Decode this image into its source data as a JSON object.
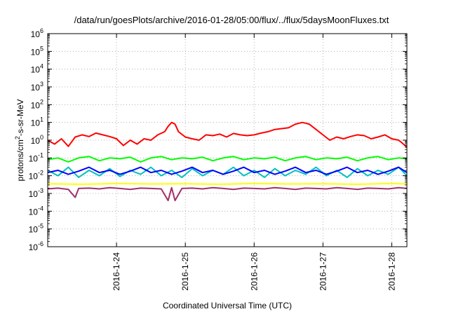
{
  "chart_data": {
    "type": "line",
    "title": "/data/run/goesPlots/archive/2016-01-28/05:00/flux/../flux/5daysMoonFluxes.txt",
    "xlabel": "Coordinated Universal Time (UTC)",
    "ylabel": "protons/cm2-s-sr-MeV",
    "ylabel_parts": {
      "pre": "protons/cm",
      "sup": "2",
      "post": "-s-sr-MeV"
    },
    "yscale": "log",
    "ylim_exp": [
      -6,
      6
    ],
    "y_tick_labels": [
      {
        "base": "10",
        "exp": "-6"
      },
      {
        "base": "10",
        "exp": "-5"
      },
      {
        "base": "10",
        "exp": "-4"
      },
      {
        "base": "10",
        "exp": "-3"
      },
      {
        "base": "10",
        "exp": "-2"
      },
      {
        "base": "10",
        "exp": "-1"
      },
      {
        "base": "10",
        "exp": "0"
      },
      {
        "base": "10",
        "exp": "1"
      },
      {
        "base": "10",
        "exp": "2"
      },
      {
        "base": "10",
        "exp": "3"
      },
      {
        "base": "10",
        "exp": "4"
      },
      {
        "base": "10",
        "exp": "5"
      },
      {
        "base": "10",
        "exp": "6"
      }
    ],
    "xlim_days": [
      23.0,
      28.22
    ],
    "x_ticks": [
      {
        "label": "2016-1-24",
        "day": 24
      },
      {
        "label": "2016-1-25",
        "day": 25
      },
      {
        "label": "2016-1-26",
        "day": 26
      },
      {
        "label": "2016-1-27",
        "day": 27
      },
      {
        "label": "2016-1-28",
        "day": 28
      }
    ],
    "grid": true,
    "series": [
      {
        "color": "#ff0000",
        "x": [
          23.0,
          23.1,
          23.2,
          23.3,
          23.4,
          23.5,
          23.6,
          23.7,
          23.8,
          23.9,
          24.0,
          24.1,
          24.2,
          24.3,
          24.4,
          24.5,
          24.6,
          24.7,
          24.75,
          24.8,
          24.85,
          24.9,
          25.0,
          25.1,
          25.2,
          25.3,
          25.4,
          25.5,
          25.6,
          25.7,
          25.8,
          25.9,
          26.0,
          26.1,
          26.2,
          26.3,
          26.4,
          26.5,
          26.6,
          26.7,
          26.75,
          26.8,
          26.9,
          27.0,
          27.1,
          27.2,
          27.3,
          27.4,
          27.5,
          27.6,
          27.7,
          27.8,
          27.9,
          28.0,
          28.1,
          28.15,
          28.22
        ],
        "y": [
          1.0,
          0.6,
          1.2,
          0.45,
          1.5,
          2.0,
          1.6,
          2.5,
          2.0,
          1.6,
          1.2,
          0.5,
          1.0,
          0.6,
          1.2,
          1.0,
          2.0,
          3.0,
          6.0,
          10.0,
          8.0,
          3.0,
          1.5,
          1.2,
          1.0,
          2.0,
          1.8,
          2.2,
          1.5,
          2.4,
          2.0,
          1.8,
          2.0,
          2.5,
          3.0,
          4.0,
          4.5,
          5.0,
          8.0,
          10.0,
          9.0,
          8.0,
          4.0,
          2.0,
          1.0,
          1.5,
          1.2,
          1.6,
          2.0,
          1.8,
          1.2,
          1.5,
          2.0,
          1.2,
          1.0,
          0.7,
          0.4
        ]
      },
      {
        "color": "#00ff00",
        "x": [
          23.0,
          23.15,
          23.3,
          23.45,
          23.6,
          23.75,
          23.9,
          24.05,
          24.2,
          24.35,
          24.5,
          24.65,
          24.8,
          24.95,
          25.1,
          25.25,
          25.4,
          25.55,
          25.7,
          25.85,
          26.0,
          26.15,
          26.3,
          26.45,
          26.6,
          26.75,
          26.9,
          27.05,
          27.2,
          27.35,
          27.5,
          27.65,
          27.8,
          27.95,
          28.1,
          28.22
        ],
        "y": [
          0.08,
          0.1,
          0.06,
          0.1,
          0.12,
          0.07,
          0.1,
          0.09,
          0.11,
          0.06,
          0.1,
          0.12,
          0.08,
          0.1,
          0.09,
          0.11,
          0.07,
          0.1,
          0.12,
          0.08,
          0.1,
          0.09,
          0.11,
          0.07,
          0.1,
          0.12,
          0.08,
          0.1,
          0.09,
          0.11,
          0.07,
          0.1,
          0.12,
          0.08,
          0.1,
          0.09
        ]
      },
      {
        "color": "#00c0c0",
        "x": [
          23.0,
          23.15,
          23.3,
          23.45,
          23.6,
          23.75,
          23.9,
          24.05,
          24.2,
          24.35,
          24.5,
          24.65,
          24.8,
          24.95,
          25.1,
          25.25,
          25.4,
          25.55,
          25.7,
          25.85,
          26.0,
          26.15,
          26.3,
          26.45,
          26.6,
          26.75,
          26.9,
          27.05,
          27.2,
          27.35,
          27.5,
          27.65,
          27.8,
          27.95,
          28.1,
          28.22
        ],
        "y": [
          0.02,
          0.01,
          0.03,
          0.008,
          0.02,
          0.01,
          0.025,
          0.009,
          0.02,
          0.012,
          0.03,
          0.01,
          0.02,
          0.008,
          0.025,
          0.01,
          0.02,
          0.012,
          0.03,
          0.01,
          0.02,
          0.008,
          0.025,
          0.01,
          0.02,
          0.012,
          0.03,
          0.01,
          0.02,
          0.008,
          0.025,
          0.01,
          0.02,
          0.012,
          0.03,
          0.01
        ]
      },
      {
        "color": "#0000ff",
        "x": [
          23.0,
          23.15,
          23.3,
          23.45,
          23.6,
          23.75,
          23.9,
          24.05,
          24.2,
          24.35,
          24.5,
          24.65,
          24.8,
          24.95,
          25.1,
          25.25,
          25.4,
          25.55,
          25.7,
          25.85,
          26.0,
          26.15,
          26.3,
          26.45,
          26.6,
          26.75,
          26.9,
          27.05,
          27.2,
          27.35,
          27.5,
          27.65,
          27.8,
          27.95,
          28.1,
          28.22
        ],
        "y": [
          0.015,
          0.02,
          0.012,
          0.018,
          0.03,
          0.015,
          0.02,
          0.012,
          0.018,
          0.03,
          0.015,
          0.02,
          0.012,
          0.018,
          0.03,
          0.015,
          0.02,
          0.012,
          0.018,
          0.03,
          0.015,
          0.02,
          0.012,
          0.018,
          0.03,
          0.015,
          0.02,
          0.012,
          0.018,
          0.03,
          0.015,
          0.02,
          0.012,
          0.018,
          0.03,
          0.015
        ]
      },
      {
        "color": "#ffff00",
        "x": [
          23.0,
          23.5,
          24.0,
          24.5,
          25.0,
          25.5,
          26.0,
          26.5,
          27.0,
          27.5,
          28.0,
          28.22
        ],
        "y": [
          0.0035,
          0.0033,
          0.0036,
          0.0034,
          0.0035,
          0.0033,
          0.0036,
          0.0034,
          0.0035,
          0.0033,
          0.0036,
          0.0034
        ]
      },
      {
        "color": "#a0306a",
        "x": [
          23.0,
          23.15,
          23.3,
          23.4,
          23.45,
          23.6,
          23.75,
          23.9,
          24.05,
          24.2,
          24.35,
          24.5,
          24.65,
          24.75,
          24.8,
          24.85,
          24.95,
          25.1,
          25.25,
          25.4,
          25.55,
          25.7,
          25.85,
          26.0,
          26.15,
          26.3,
          26.45,
          26.6,
          26.75,
          26.9,
          27.05,
          27.2,
          27.35,
          27.5,
          27.65,
          27.8,
          27.95,
          28.1,
          28.22
        ],
        "y": [
          0.0018,
          0.002,
          0.0017,
          0.0006,
          0.0019,
          0.002,
          0.0018,
          0.0021,
          0.0019,
          0.0017,
          0.002,
          0.0019,
          0.0018,
          0.0004,
          0.0021,
          0.0004,
          0.0019,
          0.002,
          0.0018,
          0.0021,
          0.0019,
          0.0017,
          0.002,
          0.0019,
          0.0018,
          0.0021,
          0.0019,
          0.0017,
          0.002,
          0.0019,
          0.0018,
          0.0021,
          0.0019,
          0.0017,
          0.002,
          0.0019,
          0.0018,
          0.0021,
          0.0019
        ]
      }
    ]
  }
}
